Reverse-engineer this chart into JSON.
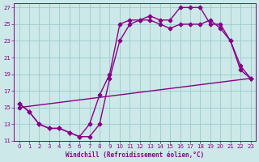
{
  "xlabel": "Windchill (Refroidissement éolien,°C)",
  "bg_color": "#cce8e8",
  "line_color": "#880088",
  "xlim_min": -0.5,
  "xlim_max": 23.5,
  "ylim_min": 11,
  "ylim_max": 27.5,
  "xticks": [
    0,
    1,
    2,
    3,
    4,
    5,
    6,
    7,
    8,
    9,
    10,
    11,
    12,
    13,
    14,
    15,
    16,
    17,
    18,
    19,
    20,
    21,
    22,
    23
  ],
  "yticks": [
    11,
    13,
    15,
    17,
    19,
    21,
    23,
    25,
    27
  ],
  "line1_x": [
    0,
    1,
    2,
    3,
    4,
    5,
    6,
    7,
    8,
    9,
    10,
    11,
    12,
    13,
    14,
    15,
    16,
    17,
    18,
    19,
    20,
    21,
    22,
    23
  ],
  "line1_y": [
    15.5,
    14.5,
    13.0,
    12.5,
    12.5,
    12.0,
    11.5,
    13.0,
    16.5,
    19.0,
    25.0,
    25.5,
    25.5,
    26.0,
    25.5,
    25.5,
    27.0,
    27.0,
    27.0,
    25.0,
    25.0,
    23.0,
    19.5,
    18.5
  ],
  "line2_x": [
    0,
    1,
    2,
    3,
    4,
    5,
    6,
    7,
    8,
    9,
    10,
    11,
    12,
    13,
    14,
    15,
    16,
    17,
    18,
    19,
    20,
    21,
    22,
    23
  ],
  "line2_y": [
    15.5,
    14.5,
    13.0,
    12.5,
    12.5,
    12.0,
    11.5,
    11.5,
    13.0,
    18.5,
    23.0,
    25.0,
    25.5,
    25.5,
    25.0,
    24.5,
    25.0,
    25.0,
    25.0,
    25.5,
    24.5,
    23.0,
    20.0,
    18.5
  ],
  "line3_x": [
    0,
    23
  ],
  "line3_y": [
    15.0,
    18.5
  ],
  "grid_color": "#99cccc",
  "marker": "P",
  "markersize": 3.0,
  "linewidth": 1.0
}
